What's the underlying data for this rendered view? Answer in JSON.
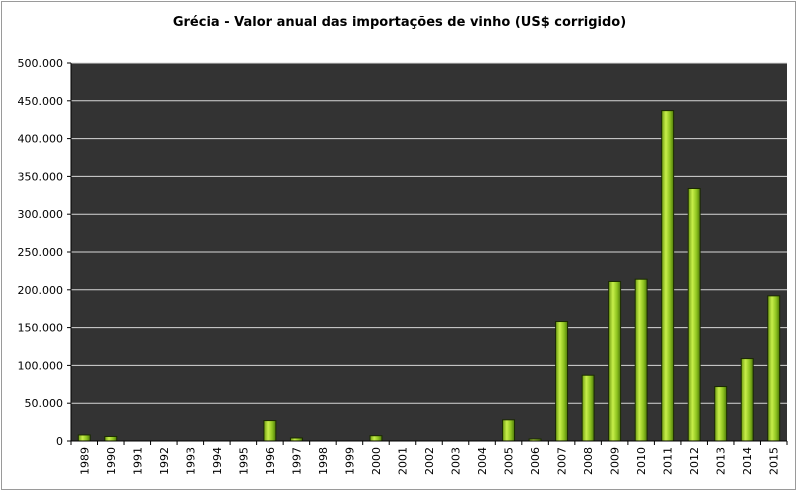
{
  "chart_data": {
    "type": "bar",
    "title": "Grécia - Valor anual das importações de vinho (US$ corrigido)",
    "xlabel": "",
    "ylabel": "",
    "ylim": [
      0,
      500000
    ],
    "yticks": [
      0,
      50000,
      100000,
      150000,
      200000,
      250000,
      300000,
      350000,
      400000,
      450000,
      500000
    ],
    "ytick_labels": [
      "0",
      "50.000",
      "100.000",
      "150.000",
      "200.000",
      "250.000",
      "300.000",
      "350.000",
      "400.000",
      "450.000",
      "500.000"
    ],
    "grid": true,
    "legend": "none",
    "categories": [
      "1989",
      "1990",
      "1991",
      "1992",
      "1993",
      "1994",
      "1995",
      "1996",
      "1997",
      "1998",
      "1999",
      "2000",
      "2001",
      "2002",
      "2003",
      "2004",
      "2005",
      "2006",
      "2007",
      "2008",
      "2009",
      "2010",
      "2011",
      "2012",
      "2013",
      "2014",
      "2015"
    ],
    "values": [
      8000,
      6000,
      0,
      0,
      0,
      0,
      0,
      27000,
      4000,
      0,
      0,
      7000,
      0,
      0,
      0,
      0,
      28000,
      1000,
      158000,
      87000,
      211000,
      214000,
      437000,
      334000,
      72000,
      109000,
      192000
    ],
    "colors": {
      "plot_background": "#333333",
      "gridline": "#d8d8d8",
      "bar_fill": "#8dc21f",
      "bar_highlight": "#c8ef4a",
      "bar_shadow": "#5e8a0f",
      "bar_outline": "#1a2a00"
    }
  }
}
